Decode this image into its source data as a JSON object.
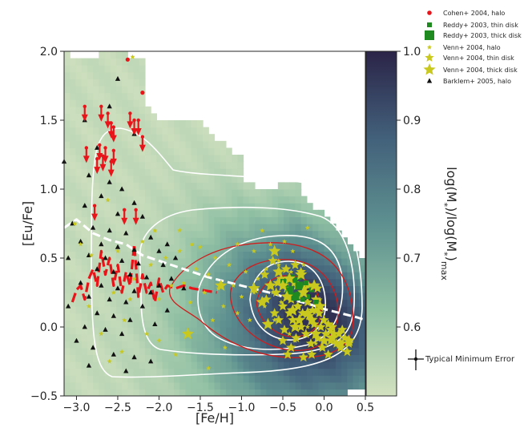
{
  "chart_data": {
    "type": "scatter",
    "xlabel": "[Fe/H]",
    "ylabel": "[Eu/Fe]",
    "xlim": [
      -3.15,
      0.5
    ],
    "ylim": [
      -0.5,
      2.0
    ],
    "x_ticks": [
      "-3.0",
      "-2.5",
      "-2.0",
      "-1.5",
      "-1.0",
      "-0.5",
      "0.0",
      "0.5"
    ],
    "y_ticks": [
      "-0.5",
      "0.0",
      "0.5",
      "1.0",
      "1.5",
      "2.0"
    ],
    "colorbar": {
      "label": "log(M*)/log(M*)max",
      "range": [
        0.5,
        1.0
      ],
      "ticks": [
        "0.6",
        "0.7",
        "0.8",
        "0.9",
        "1.0"
      ],
      "color_low": "#d3e2c0",
      "color_high": "#2b2448"
    },
    "error_bar_label": "Typical Minimum Error",
    "legend": [
      {
        "label": "Cohen+ 2004, halo",
        "marker": "circle",
        "color": "#e8141a"
      },
      {
        "label": "Reddy+ 2003, thin disk",
        "marker": "square-small",
        "color": "#1f8a1f"
      },
      {
        "label": "Reddy+ 2003, thick disk",
        "marker": "square-large",
        "color": "#1f8a1f"
      },
      {
        "label": "Venn+ 2004, halo",
        "marker": "star-small",
        "color": "#c8c81e"
      },
      {
        "label": "Venn+ 2004, thin disk",
        "marker": "star-medium",
        "color": "#c8c81e"
      },
      {
        "label": "Venn+ 2004, thick disk",
        "marker": "star-large",
        "color": "#c8c81e"
      },
      {
        "label": "Barklem+ 2005, halo",
        "marker": "triangle",
        "color": "#111111"
      }
    ],
    "series": [
      {
        "name": "Cohen+ 2004, halo",
        "points": [
          [
            -2.38,
            1.94
          ],
          [
            -2.2,
            1.7
          ]
        ]
      },
      {
        "name": "Cohen+ 2004, halo (upper limits)",
        "points": [
          [
            -2.9,
            1.6
          ],
          [
            -2.7,
            1.6
          ],
          [
            -2.62,
            1.55
          ],
          [
            -2.58,
            1.48
          ],
          [
            -2.55,
            1.45
          ],
          [
            -2.35,
            1.55
          ],
          [
            -2.3,
            1.5
          ],
          [
            -2.25,
            1.5
          ],
          [
            -2.2,
            1.38
          ],
          [
            -2.88,
            1.3
          ],
          [
            -2.72,
            1.32
          ],
          [
            -2.65,
            1.3
          ],
          [
            -2.55,
            1.28
          ],
          [
            -2.75,
            1.22
          ],
          [
            -2.68,
            1.24
          ],
          [
            -2.58,
            1.2
          ],
          [
            -2.78,
            0.88
          ],
          [
            -2.42,
            0.85
          ],
          [
            -2.28,
            0.85
          ]
        ]
      },
      {
        "name": "Reddy+ 2003, thin disk",
        "points": [
          [
            -0.35,
            0.34
          ],
          [
            -0.28,
            0.3
          ],
          [
            -0.22,
            0.32
          ],
          [
            -0.32,
            0.24
          ],
          [
            -0.2,
            0.22
          ],
          [
            -0.15,
            0.27
          ],
          [
            -0.26,
            0.2
          ],
          [
            -0.4,
            0.28
          ],
          [
            -0.3,
            0.36
          ],
          [
            -0.1,
            0.18
          ]
        ]
      },
      {
        "name": "Reddy+ 2003, thick disk",
        "points": [
          [
            -0.48,
            0.32
          ],
          [
            -0.3,
            0.3
          ],
          [
            -0.42,
            0.26
          ],
          [
            -0.35,
            0.22
          ],
          [
            -0.4,
            0.35
          ]
        ]
      },
      {
        "name": "Venn+ 2004, halo",
        "points": [
          [
            -2.32,
            1.96
          ],
          [
            -2.62,
            0.92
          ],
          [
            -2.82,
            0.52
          ],
          [
            -2.95,
            0.6
          ],
          [
            -3.02,
            0.75
          ],
          [
            -2.55,
            0.25
          ],
          [
            -2.42,
            0.05
          ],
          [
            -2.3,
            0.35
          ],
          [
            -2.2,
            0.62
          ],
          [
            -2.1,
            0.45
          ],
          [
            -2.0,
            0.2
          ],
          [
            -1.92,
            0.5
          ],
          [
            -1.85,
            0.3
          ],
          [
            -1.75,
            0.55
          ],
          [
            -1.7,
            0.32
          ],
          [
            -1.62,
            0.18
          ],
          [
            -1.55,
            0.42
          ],
          [
            -1.5,
            0.58
          ],
          [
            -1.45,
            0.25
          ],
          [
            -1.4,
            0.38
          ],
          [
            -1.35,
            0.05
          ],
          [
            -1.32,
            0.5
          ],
          [
            -1.28,
            0.28
          ],
          [
            -1.22,
            0.15
          ],
          [
            -1.15,
            0.45
          ],
          [
            -1.1,
            0.3
          ],
          [
            -1.05,
            0.6
          ],
          [
            -1.0,
            0.22
          ],
          [
            -0.95,
            0.4
          ],
          [
            -0.9,
            0.05
          ],
          [
            -0.85,
            0.55
          ],
          [
            -0.8,
            0.35
          ],
          [
            -0.75,
            0.7
          ],
          [
            -0.72,
            0.15
          ],
          [
            -0.7,
            0.42
          ],
          [
            -0.65,
            0.6
          ],
          [
            -0.62,
            0.25
          ],
          [
            -0.6,
            0.05
          ],
          [
            -0.55,
            0.48
          ],
          [
            -0.52,
            0.18
          ],
          [
            -0.48,
            0.62
          ],
          [
            -0.45,
            0.3
          ],
          [
            -0.42,
            -0.05
          ],
          [
            -0.4,
            0.4
          ],
          [
            -0.38,
            0.55
          ],
          [
            -0.35,
            -0.1
          ],
          [
            -0.3,
            0.15
          ],
          [
            -0.25,
            0.45
          ],
          [
            -0.2,
            0.0
          ],
          [
            -0.15,
            0.3
          ],
          [
            -0.1,
            -0.12
          ],
          [
            -0.05,
            0.2
          ],
          [
            0.0,
            0.05
          ],
          [
            0.05,
            -0.05
          ],
          [
            -2.7,
            -0.05
          ],
          [
            -2.85,
            0.15
          ],
          [
            -2.6,
            -0.25
          ],
          [
            -2.45,
            -0.18
          ],
          [
            -2.0,
            -0.1
          ],
          [
            -1.8,
            -0.2
          ],
          [
            -1.4,
            -0.3
          ],
          [
            -1.2,
            -0.15
          ],
          [
            -2.05,
            0.7
          ],
          [
            -1.75,
            0.7
          ],
          [
            -1.6,
            0.6
          ],
          [
            -2.5,
            0.55
          ],
          [
            -2.35,
            0.2
          ],
          [
            -2.15,
            -0.05
          ],
          [
            -0.2,
            0.72
          ],
          [
            -0.55,
            0.45
          ],
          [
            -0.85,
            0.25
          ],
          [
            -1.05,
            0.1
          ]
        ]
      },
      {
        "name": "Venn+ 2004, thin disk",
        "points": [
          [
            -0.72,
            0.38
          ],
          [
            -0.65,
            0.3
          ],
          [
            -0.6,
            0.1
          ],
          [
            -0.58,
            0.25
          ],
          [
            -0.55,
            0.05
          ],
          [
            -0.52,
            0.35
          ],
          [
            -0.5,
            0.15
          ],
          [
            -0.48,
            -0.02
          ],
          [
            -0.45,
            0.28
          ],
          [
            -0.42,
            0.1
          ],
          [
            -0.4,
            0.2
          ],
          [
            -0.38,
            0.05
          ],
          [
            -0.36,
            0.32
          ],
          [
            -0.34,
            -0.08
          ],
          [
            -0.32,
            0.15
          ],
          [
            -0.3,
            0.22
          ],
          [
            -0.28,
            0.0
          ],
          [
            -0.26,
            0.1
          ],
          [
            -0.24,
            0.28
          ],
          [
            -0.22,
            -0.05
          ],
          [
            -0.2,
            0.18
          ],
          [
            -0.18,
            0.08
          ],
          [
            -0.16,
            -0.12
          ],
          [
            -0.14,
            0.12
          ],
          [
            -0.12,
            0.02
          ],
          [
            -0.1,
            0.2
          ],
          [
            -0.08,
            -0.08
          ],
          [
            -0.06,
            0.1
          ],
          [
            -0.04,
            0.0
          ],
          [
            -0.02,
            -0.15
          ],
          [
            0.0,
            0.05
          ],
          [
            0.02,
            -0.05
          ],
          [
            0.05,
            0.02
          ],
          [
            0.08,
            -0.1
          ],
          [
            0.1,
            0.0
          ],
          [
            0.12,
            -0.05
          ],
          [
            0.15,
            -0.12
          ],
          [
            0.18,
            -0.05
          ],
          [
            0.2,
            -0.15
          ],
          [
            0.25,
            -0.08
          ],
          [
            0.28,
            -0.18
          ],
          [
            0.3,
            -0.12
          ],
          [
            -0.35,
            0.45
          ],
          [
            -0.28,
            0.4
          ],
          [
            -0.46,
            0.42
          ],
          [
            -0.62,
            0.48
          ],
          [
            -0.4,
            -0.15
          ],
          [
            -0.15,
            -0.2
          ],
          [
            0.05,
            -0.2
          ],
          [
            -0.25,
            -0.22
          ],
          [
            -0.5,
            -0.1
          ],
          [
            -0.7,
            0.2
          ],
          [
            -0.33,
            0.3
          ],
          [
            -0.19,
            0.3
          ],
          [
            -0.08,
            0.28
          ],
          [
            -0.56,
            0.32
          ],
          [
            -0.44,
            -0.2
          ],
          [
            -0.1,
            0.12
          ],
          [
            0.08,
            -0.02
          ],
          [
            0.22,
            -0.02
          ]
        ]
      },
      {
        "name": "Venn+ 2004, thick disk",
        "points": [
          [
            -1.65,
            -0.05
          ],
          [
            -1.25,
            0.3
          ],
          [
            -0.85,
            0.28
          ],
          [
            -0.6,
            0.55
          ],
          [
            -0.75,
            0.18
          ],
          [
            -0.55,
            0.4
          ],
          [
            -0.45,
            0.22
          ],
          [
            -0.68,
            0.02
          ],
          [
            -0.38,
            0.12
          ],
          [
            -0.3,
            0.05
          ],
          [
            -0.5,
            0.3
          ],
          [
            -0.25,
            0.25
          ],
          [
            -0.2,
            0.1
          ],
          [
            -0.42,
            0.35
          ],
          [
            -0.35,
            0.0
          ],
          [
            -0.15,
            0.05
          ],
          [
            -0.1,
            -0.05
          ],
          [
            0.0,
            -0.1
          ],
          [
            0.1,
            -0.08
          ],
          [
            -0.05,
            0.15
          ],
          [
            0.2,
            -0.12
          ],
          [
            0.3,
            -0.1
          ],
          [
            -0.65,
            0.3
          ],
          [
            -0.28,
            0.38
          ],
          [
            -0.12,
            0.3
          ]
        ]
      },
      {
        "name": "Barklem+ 2005, halo",
        "points": [
          [
            -2.5,
            1.8
          ],
          [
            -2.6,
            1.6
          ],
          [
            -2.9,
            1.5
          ],
          [
            -2.3,
            1.4
          ],
          [
            -2.75,
            1.3
          ],
          [
            -3.15,
            1.2
          ],
          [
            -2.85,
            1.1
          ],
          [
            -2.6,
            1.05
          ],
          [
            -2.45,
            1.0
          ],
          [
            -2.7,
            0.95
          ],
          [
            -2.3,
            0.9
          ],
          [
            -2.9,
            0.88
          ],
          [
            -2.5,
            0.82
          ],
          [
            -2.2,
            0.8
          ],
          [
            -3.05,
            0.75
          ],
          [
            -2.8,
            0.72
          ],
          [
            -2.6,
            0.7
          ],
          [
            -2.4,
            0.68
          ],
          [
            -2.1,
            0.65
          ],
          [
            -2.95,
            0.62
          ],
          [
            -2.7,
            0.6
          ],
          [
            -2.5,
            0.58
          ],
          [
            -2.3,
            0.56
          ],
          [
            -2.0,
            0.55
          ],
          [
            -2.85,
            0.52
          ],
          [
            -2.65,
            0.5
          ],
          [
            -2.45,
            0.48
          ],
          [
            -2.25,
            0.46
          ],
          [
            -1.95,
            0.45
          ],
          [
            -2.75,
            0.42
          ],
          [
            -2.55,
            0.4
          ],
          [
            -2.35,
            0.38
          ],
          [
            -2.15,
            0.36
          ],
          [
            -1.85,
            0.35
          ],
          [
            -2.95,
            0.32
          ],
          [
            -2.7,
            0.3
          ],
          [
            -2.5,
            0.28
          ],
          [
            -2.3,
            0.26
          ],
          [
            -2.1,
            0.25
          ],
          [
            -2.85,
            0.22
          ],
          [
            -2.6,
            0.2
          ],
          [
            -2.4,
            0.18
          ],
          [
            -2.2,
            0.15
          ],
          [
            -1.9,
            0.12
          ],
          [
            -2.75,
            0.1
          ],
          [
            -2.55,
            0.08
          ],
          [
            -2.35,
            0.05
          ],
          [
            -2.05,
            0.02
          ],
          [
            -2.9,
            0.0
          ],
          [
            -2.65,
            -0.02
          ],
          [
            -2.45,
            -0.05
          ],
          [
            -3.0,
            -0.1
          ],
          [
            -2.8,
            -0.15
          ],
          [
            -2.55,
            -0.2
          ],
          [
            -2.3,
            -0.22
          ],
          [
            -2.1,
            -0.25
          ],
          [
            -2.85,
            -0.28
          ],
          [
            -2.4,
            -0.32
          ],
          [
            -1.7,
            0.28
          ],
          [
            -1.8,
            0.5
          ],
          [
            -3.1,
            0.5
          ],
          [
            -3.1,
            0.15
          ],
          [
            -2.0,
            0.3
          ],
          [
            -1.9,
            0.6
          ]
        ]
      }
    ],
    "lines": [
      {
        "style": "white dashed",
        "x": [
          -3.15,
          -3.0,
          -2.8,
          -2.6,
          -2.4,
          -2.2,
          -2.0,
          -1.8,
          -1.6,
          -1.4,
          -1.2,
          -1.0,
          -0.8,
          -0.6,
          -0.4,
          -0.2,
          0.0,
          0.2,
          0.4,
          0.5
        ],
        "y": [
          0.72,
          0.78,
          0.68,
          0.63,
          0.6,
          0.52,
          0.48,
          0.44,
          0.4,
          0.36,
          0.33,
          0.3,
          0.27,
          0.24,
          0.2,
          0.17,
          0.13,
          0.1,
          0.07,
          0.05
        ]
      },
      {
        "style": "red dashed",
        "x": [
          -3.05,
          -3.0,
          -2.95,
          -2.9,
          -2.85,
          -2.8,
          -2.75,
          -2.7,
          -2.65,
          -2.6,
          -2.55,
          -2.5,
          -2.45,
          -2.4,
          -2.35,
          -2.3,
          -2.25,
          -2.2,
          -2.15,
          -2.1,
          -2.05,
          -2.0,
          -1.95,
          -1.9,
          -1.8,
          -1.7,
          -1.6,
          -1.5,
          -1.4,
          -1.3
        ],
        "y": [
          0.18,
          0.27,
          0.3,
          0.2,
          0.35,
          0.42,
          0.3,
          0.55,
          0.38,
          0.5,
          0.3,
          0.45,
          0.25,
          0.4,
          0.3,
          0.6,
          0.22,
          0.38,
          0.25,
          0.32,
          0.18,
          0.35,
          0.25,
          0.3,
          0.28,
          0.3,
          0.28,
          0.27,
          0.26,
          0.25
        ]
      }
    ]
  }
}
